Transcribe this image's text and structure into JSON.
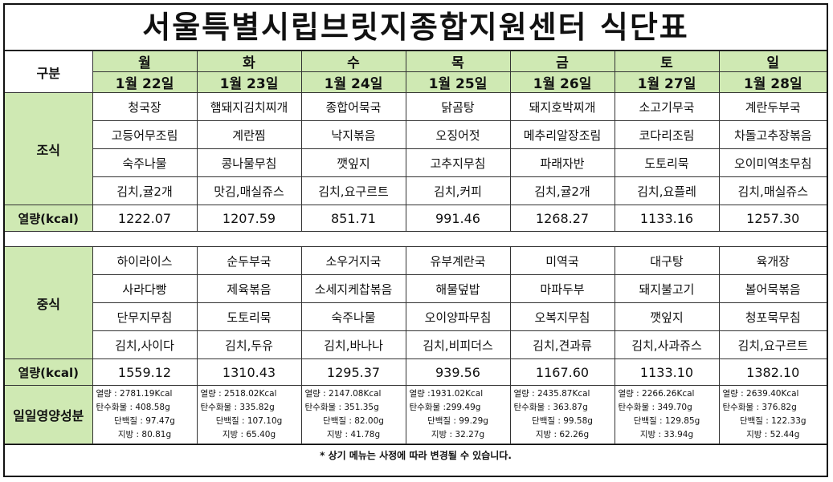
{
  "title": "서울특별시립브릿지종합지원센터  식단표",
  "header_label": "구분",
  "days": [
    {
      "day": "월",
      "date": "1월 22일"
    },
    {
      "day": "화",
      "date": "1월 23일"
    },
    {
      "day": "수",
      "date": "1월 24일"
    },
    {
      "day": "목",
      "date": "1월 25일"
    },
    {
      "day": "금",
      "date": "1월 26일"
    },
    {
      "day": "토",
      "date": "1월 27일"
    },
    {
      "day": "일",
      "date": "1월 28일"
    }
  ],
  "breakfast": {
    "label": "조식",
    "rows": [
      [
        "청국장",
        "햄돼지김치찌개",
        "종합어묵국",
        "닭곰탕",
        "돼지호박찌개",
        "소고기무국",
        "계란두부국"
      ],
      [
        "고등어무조림",
        "계란찜",
        "낙지볶음",
        "오징어젓",
        "메추리알장조림",
        "코다리조림",
        "차돌고추장볶음"
      ],
      [
        "숙주나물",
        "콩나물무침",
        "깻잎지",
        "고추지무침",
        "파래자반",
        "도토리묵",
        "오이미역초무침"
      ],
      [
        "김치,귤2개",
        "맛김,매실쥬스",
        "김치,요구르트",
        "김치,커피",
        "김치,귤2개",
        "김치,요플레",
        "김치,매실쥬스"
      ]
    ],
    "kcal_label": "열량(kcal)",
    "kcal": [
      "1222.07",
      "1207.59",
      "851.71",
      "991.46",
      "1268.27",
      "1133.16",
      "1257.30"
    ]
  },
  "lunch": {
    "label": "중식",
    "rows": [
      [
        "하이라이스",
        "순두부국",
        "소우거지국",
        "유부계란국",
        "미역국",
        "대구탕",
        "육개장"
      ],
      [
        "사라다빵",
        "제육볶음",
        "소세지케찹볶음",
        "해물덮밥",
        "마파두부",
        "돼지불고기",
        "볼어묵볶음"
      ],
      [
        "단무지무침",
        "도토리묵",
        "숙주나물",
        "오이양파무침",
        "오복지무침",
        "깻잎지",
        "청포묵무침"
      ],
      [
        "김치,사이다",
        "김치,두유",
        "김치,바나나",
        "김치,비피더스",
        "김치,견과류",
        "김치,사과쥬스",
        "김치,요구르트"
      ]
    ],
    "kcal_label": "열량(kcal)",
    "kcal": [
      "1559.12",
      "1310.43",
      "1295.37",
      "939.56",
      "1167.60",
      "1133.10",
      "1382.10"
    ]
  },
  "daily_nutrition": {
    "label": "일일영양성분",
    "columns": [
      {
        "energy": "열량 : 2781.19Kcal",
        "carb": "탄수화물 : 408.58g",
        "protein": "단백질 : 97.47g",
        "fat": "지방 : 80.81g"
      },
      {
        "energy": "열량 : 2518.02Kcal",
        "carb": "탄수화물 : 335.82g",
        "protein": "단백질 : 107.10g",
        "fat": "지방 : 65.40g"
      },
      {
        "energy": "열량 : 2147.08Kcal",
        "carb": "탄수화물 : 351.35g",
        "protein": "단백질 : 82.00g",
        "fat": "지방 : 41.78g"
      },
      {
        "energy": "열량 :1931.02Kcal",
        "carb": "탄수화물 :299.49g",
        "protein": "단백질 : 99.29g",
        "fat": "지방 : 32.27g"
      },
      {
        "energy": "열량 : 2435.87Kcal",
        "carb": "탄수화물 : 363.87g",
        "protein": "단백질 : 99.58g",
        "fat": "지방 : 62.26g"
      },
      {
        "energy": "열량 : 2266.26Kcal",
        "carb": "탄수화물 : 349.70g",
        "protein": "단백질 : 129.85g",
        "fat": "지방 : 33.94g"
      },
      {
        "energy": "열량 : 2639.40Kcal",
        "carb": "탄수화물 : 376.82g",
        "protein": "단백질 : 122.33g",
        "fat": "지방 : 52.44g"
      }
    ]
  },
  "footer": "*  상기 메뉴는 사정에 따라 변경될 수 있습니다.",
  "colors": {
    "header_green": "#cfe9b3",
    "border": "#333333"
  }
}
